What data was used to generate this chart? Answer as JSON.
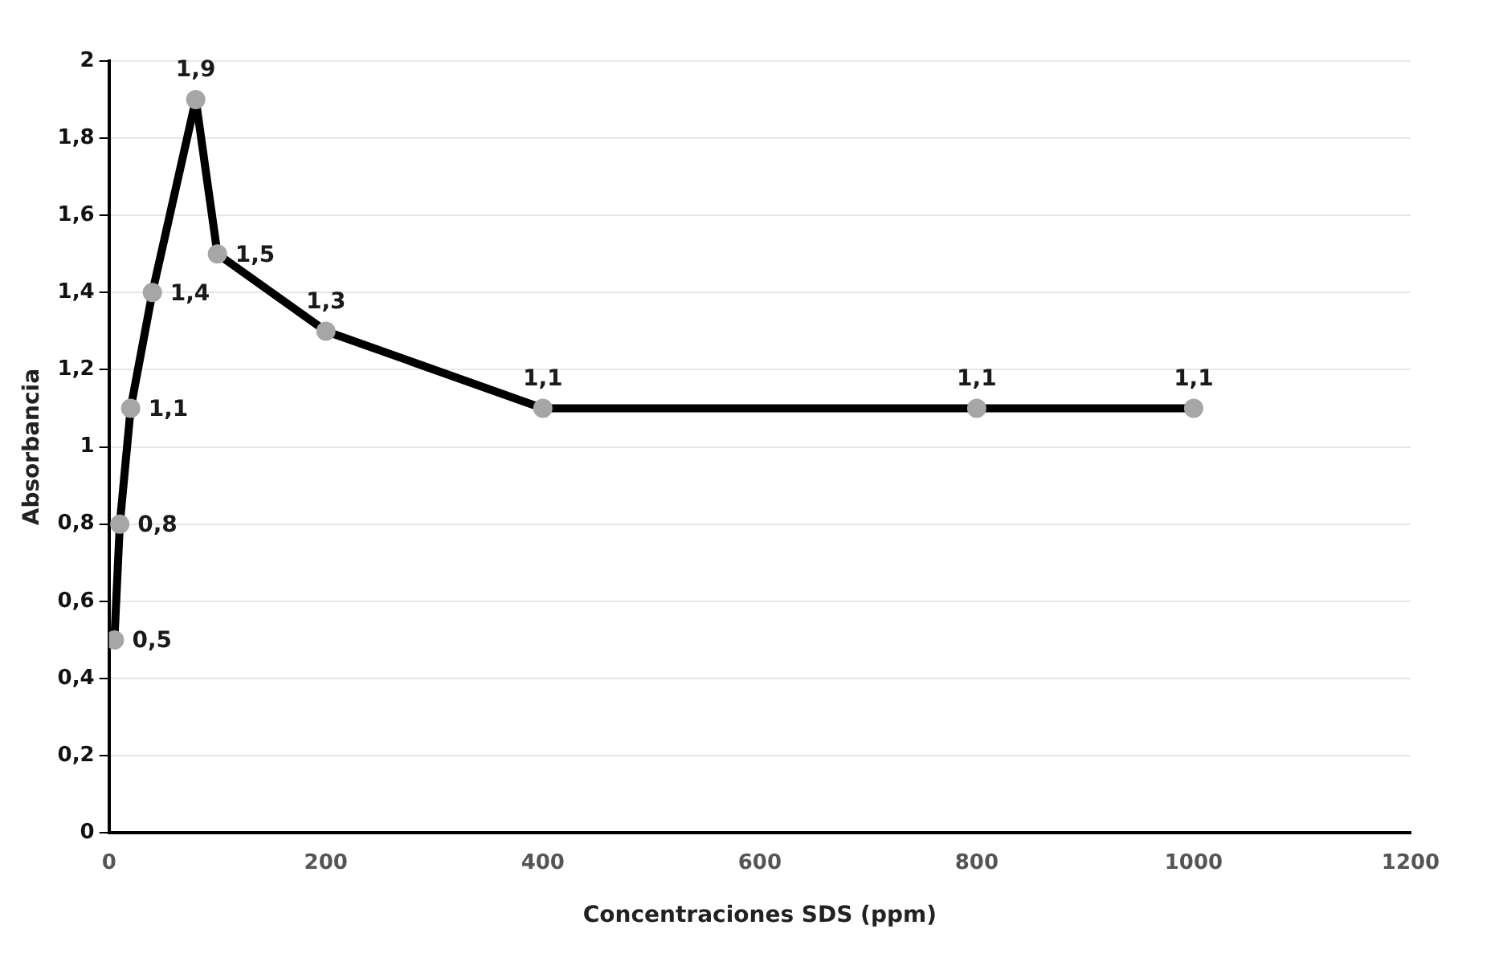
{
  "chart_data": {
    "type": "line",
    "xlabel": "Concentraciones SDS (ppm)",
    "ylabel": "Absorbancia",
    "x": [
      5,
      10,
      20,
      40,
      80,
      100,
      200,
      400,
      800,
      1000
    ],
    "series": [
      {
        "color": "#000000",
        "values": [
          0.5,
          0.8,
          1.1,
          1.4,
          1.9,
          1.5,
          1.3,
          1.1,
          1.1,
          1.1
        ],
        "value_labels": [
          "0,5",
          "0,8",
          "1,1",
          "1,4",
          "1,9",
          "1,5",
          "1,3",
          "1,1",
          "1,1",
          "1,1"
        ]
      }
    ],
    "marker": "circle",
    "xlim": [
      0,
      1200
    ],
    "xticks": [
      0,
      200,
      400,
      600,
      800,
      1000,
      1200
    ],
    "ylim": [
      0,
      2
    ],
    "yticks": [
      0,
      {
        "value": 0.2,
        "label": "0,2"
      },
      {
        "value": 0.4,
        "label": "0,4"
      },
      {
        "value": 0.6,
        "label": "0,6"
      },
      {
        "value": 0.8,
        "label": "0,8"
      },
      1,
      {
        "value": 1.2,
        "label": "1,2"
      },
      {
        "value": 1.4,
        "label": "1,4"
      },
      {
        "value": 1.6,
        "label": "1,6"
      },
      {
        "value": 1.8,
        "label": "1,8"
      },
      2
    ],
    "grid": "y",
    "legend": false
  }
}
